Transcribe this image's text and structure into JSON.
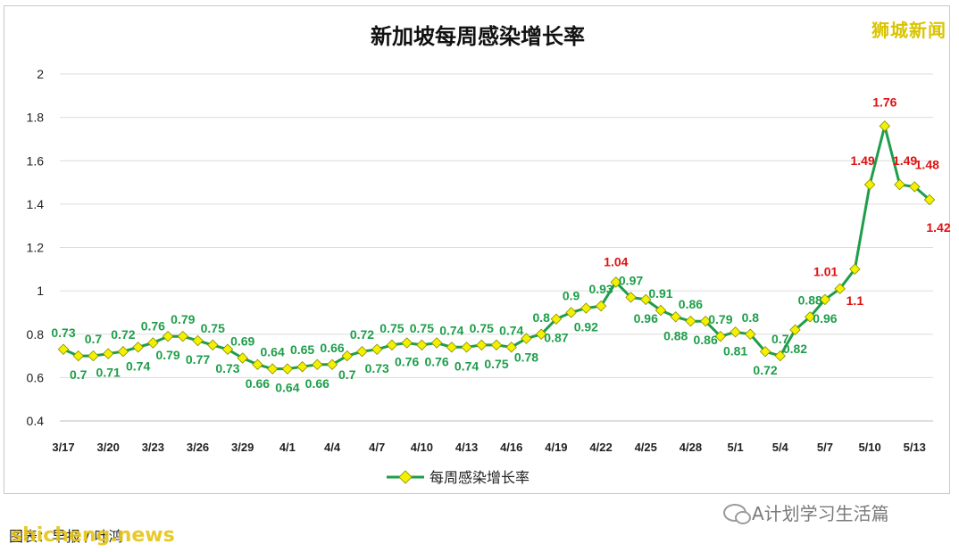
{
  "logo_text": "狮城新闻",
  "source_note": "图表：早报 / 叶鸿",
  "watermark_left": "shicheng.news",
  "watermark_right": "A计划学习生活篇",
  "chart_data": {
    "type": "line",
    "title": "新加坡每周感染增长率",
    "xlabel": "",
    "ylabel": "",
    "ylim": [
      0.4,
      2
    ],
    "y_ticks": [
      0.4,
      0.6,
      0.8,
      1,
      1.2,
      1.4,
      1.6,
      1.8,
      2
    ],
    "grid": true,
    "legend_position": "bottom-center",
    "categories": [
      "3/17",
      "3/18",
      "3/19",
      "3/20",
      "3/21",
      "3/22",
      "3/23",
      "3/24",
      "3/25",
      "3/26",
      "3/27",
      "3/28",
      "3/29",
      "3/30",
      "3/31",
      "4/1",
      "4/2",
      "4/3",
      "4/4",
      "4/5",
      "4/6",
      "4/7",
      "4/8",
      "4/9",
      "4/10",
      "4/11",
      "4/12",
      "4/13",
      "4/14",
      "4/15",
      "4/16",
      "4/17",
      "4/18",
      "4/19",
      "4/20",
      "4/21",
      "4/22",
      "4/23",
      "4/24",
      "4/25",
      "4/26",
      "4/27",
      "4/28",
      "4/29",
      "4/30",
      "5/1",
      "5/2",
      "5/3",
      "5/4",
      "5/5",
      "5/6",
      "5/7",
      "5/8",
      "5/9",
      "5/10",
      "5/11",
      "5/12",
      "5/13",
      "5/14"
    ],
    "x_tick_labels": [
      "3/17",
      "3/20",
      "3/23",
      "3/26",
      "3/29",
      "4/1",
      "4/4",
      "4/7",
      "4/10",
      "4/13",
      "4/16",
      "4/19",
      "4/22",
      "4/25",
      "4/28",
      "5/1",
      "5/4",
      "5/7",
      "5/10",
      "5/13"
    ],
    "series": [
      {
        "name": "每周感染增长率",
        "color": "#1e9e4a",
        "marker_color": "#f2f200",
        "values": [
          0.73,
          0.7,
          0.7,
          0.71,
          0.72,
          0.74,
          0.76,
          0.79,
          0.79,
          0.77,
          0.75,
          0.73,
          0.69,
          0.66,
          0.64,
          0.64,
          0.65,
          0.66,
          0.66,
          0.7,
          0.72,
          0.73,
          0.75,
          0.76,
          0.75,
          0.76,
          0.74,
          0.74,
          0.75,
          0.75,
          0.74,
          0.78,
          0.8,
          0.87,
          0.9,
          0.92,
          0.93,
          1.04,
          0.97,
          0.96,
          0.91,
          0.88,
          0.86,
          0.86,
          0.79,
          0.81,
          0.8,
          0.72,
          0.7,
          0.82,
          0.88,
          0.96,
          1.01,
          1.1,
          1.49,
          1.76,
          1.49,
          1.48,
          1.42
        ]
      }
    ],
    "highlight_color": "#e01010",
    "highlighted_points": [
      37,
      52,
      53,
      54,
      55,
      56,
      57,
      58
    ],
    "emphasized_point": 58
  }
}
